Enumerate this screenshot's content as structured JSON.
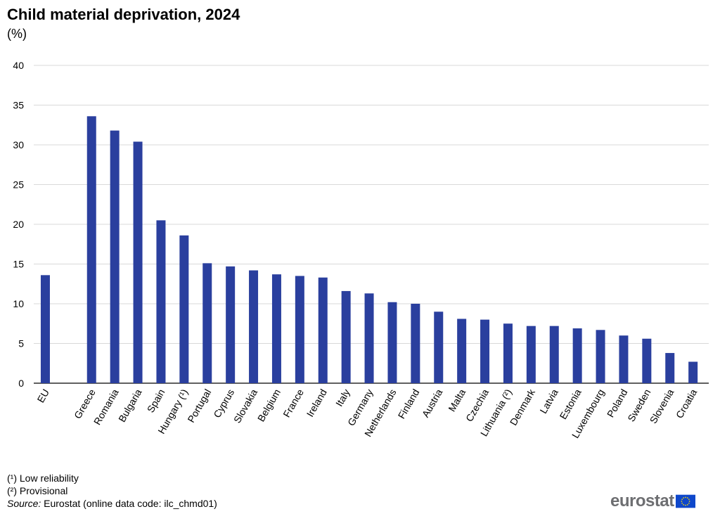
{
  "title": "Child material deprivation, 2024",
  "unit": "(%)",
  "chart_data": {
    "type": "bar",
    "title": "Child material deprivation, 2024",
    "ylabel": "(%)",
    "xlabel": "",
    "ylim": [
      0,
      40
    ],
    "yticks": [
      0,
      5,
      10,
      15,
      20,
      25,
      30,
      35,
      40
    ],
    "grid": true,
    "bar_color": "#2a3f9e",
    "categories": [
      "EU",
      "Greece",
      "Romania",
      "Bulgaria",
      "Spain",
      "Hungary (¹)",
      "Portugal",
      "Cyprus",
      "Slovakia",
      "Belgium",
      "France",
      "Ireland",
      "Italy",
      "Germany",
      "Netherlands",
      "Finland",
      "Austria",
      "Malta",
      "Czechia",
      "Lithuania (²)",
      "Denmark",
      "Latvia",
      "Estonia",
      "Luxembourg",
      "Poland",
      "Sweden",
      "Slovenia",
      "Croatia"
    ],
    "values": [
      13.6,
      33.6,
      31.8,
      30.4,
      20.5,
      18.6,
      15.1,
      14.7,
      14.2,
      13.7,
      13.5,
      13.3,
      11.6,
      11.3,
      10.2,
      10.0,
      9.0,
      8.1,
      8.0,
      7.5,
      7.2,
      7.2,
      6.9,
      6.7,
      6.0,
      5.6,
      3.8,
      2.7
    ]
  },
  "footnotes": {
    "note1": "(¹) Low reliability",
    "note2": "(²) Provisional",
    "source_label": "Source:",
    "source_text": " Eurostat (online data code: ilc_chmd01)"
  },
  "logo": {
    "text": "eurostat",
    "flag_color": "#0e47cb",
    "star_color": "#ffdd00"
  }
}
